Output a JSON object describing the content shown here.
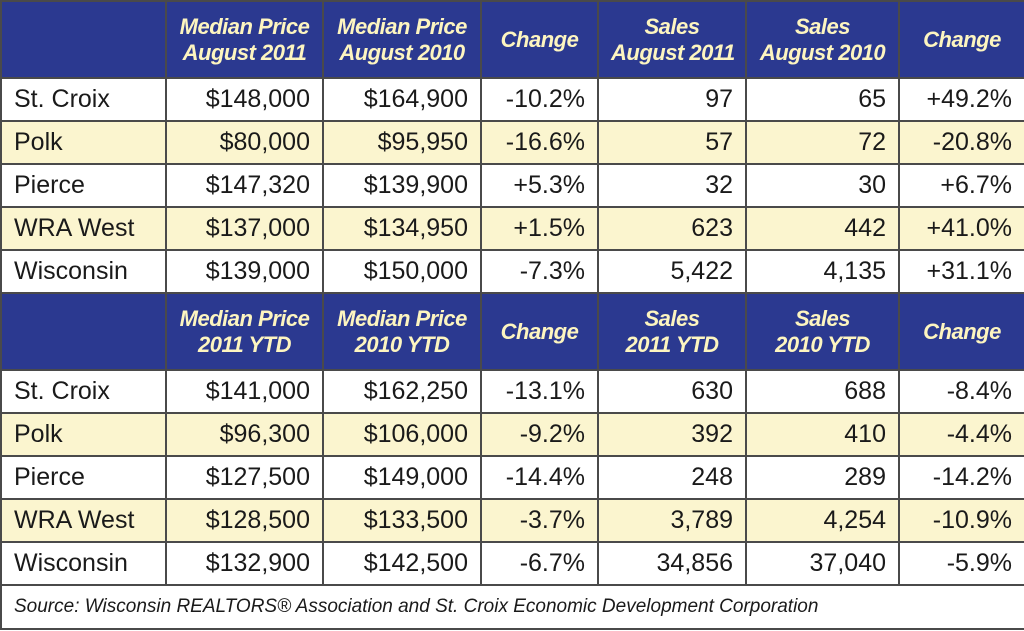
{
  "sections": [
    {
      "columns": [
        [
          "Median Price",
          "August 2011"
        ],
        [
          "Median Price",
          "August 2010"
        ],
        [
          "Change"
        ],
        [
          "Sales",
          "August 2011"
        ],
        [
          "Sales",
          "August 2010"
        ],
        [
          "Change"
        ]
      ],
      "rows": [
        [
          "St. Croix",
          "$148,000",
          "$164,900",
          "-10.2%",
          "97",
          "65",
          "+49.2%"
        ],
        [
          "Polk",
          "$80,000",
          "$95,950",
          "-16.6%",
          "57",
          "72",
          "-20.8%"
        ],
        [
          "Pierce",
          "$147,320",
          "$139,900",
          "+5.3%",
          "32",
          "30",
          "+6.7%"
        ],
        [
          "WRA West",
          "$137,000",
          "$134,950",
          "+1.5%",
          "623",
          "442",
          "+41.0%"
        ],
        [
          "Wisconsin",
          "$139,000",
          "$150,000",
          "-7.3%",
          "5,422",
          "4,135",
          "+31.1%"
        ]
      ]
    },
    {
      "columns": [
        [
          "Median Price",
          "2011 YTD"
        ],
        [
          "Median Price",
          "2010 YTD"
        ],
        [
          "Change"
        ],
        [
          "Sales",
          "2011 YTD"
        ],
        [
          "Sales",
          "2010 YTD"
        ],
        [
          "Change"
        ]
      ],
      "rows": [
        [
          "St. Croix",
          "$141,000",
          "$162,250",
          "-13.1%",
          "630",
          "688",
          "-8.4%"
        ],
        [
          "Polk",
          "$96,300",
          "$106,000",
          "-9.2%",
          "392",
          "410",
          "-4.4%"
        ],
        [
          "Pierce",
          "$127,500",
          "$149,000",
          "-14.4%",
          "248",
          "289",
          "-14.2%"
        ],
        [
          "WRA West",
          "$128,500",
          "$133,500",
          "-3.7%",
          "3,789",
          "4,254",
          "-10.9%"
        ],
        [
          "Wisconsin",
          "$132,900",
          "$142,500",
          "-6.7%",
          "34,856",
          "37,040",
          "-5.9%"
        ]
      ]
    }
  ],
  "source": "Source: Wisconsin REALTORS® Association and St. Croix Economic Development Corporation"
}
